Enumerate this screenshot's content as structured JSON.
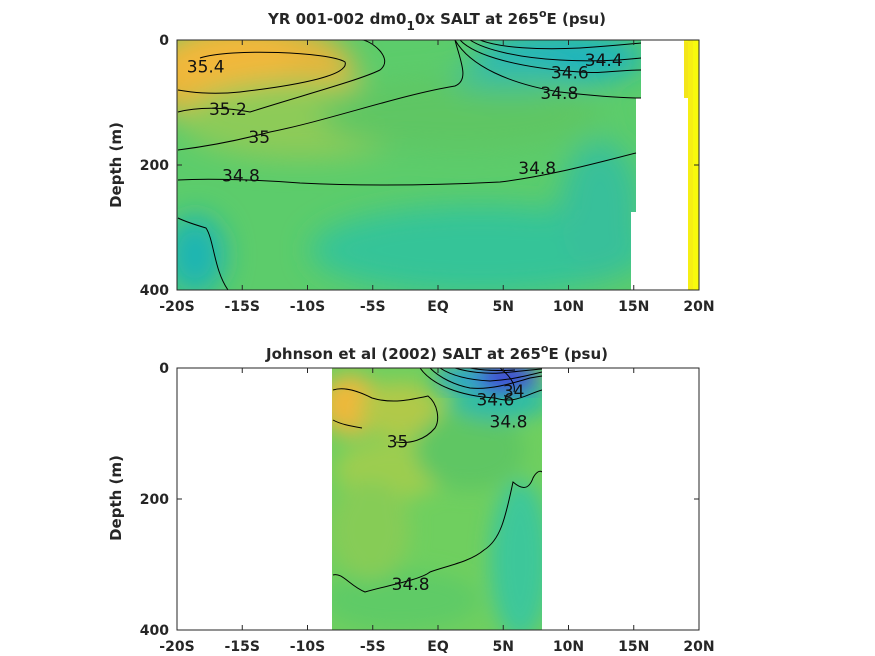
{
  "chart_data": [
    {
      "type": "heatmap",
      "title_parts": [
        "YR 001-002 dm0",
        "1",
        "0x SALT at 265",
        "o",
        "E (psu)"
      ],
      "ylabel": "Depth (m)",
      "x_ticks": [
        "-20S",
        "-15S",
        "-10S",
        "-5S",
        "EQ",
        "5N",
        "10N",
        "15N",
        "20N"
      ],
      "y_ticks": [
        "0",
        "200",
        "400"
      ],
      "xlim": [
        -20,
        20
      ],
      "ylim": [
        0,
        400
      ],
      "y_reversed": true,
      "colorscale": "parula",
      "color_range_psu": [
        33.8,
        35.6
      ],
      "contour_labels": [
        {
          "text": "35.4",
          "lat": -17.8,
          "depth": 42
        },
        {
          "text": "35.2",
          "lat": -16.1,
          "depth": 110
        },
        {
          "text": "35",
          "lat": -13.7,
          "depth": 155
        },
        {
          "text": "34.8",
          "lat": -15.1,
          "depth": 217
        },
        {
          "text": "34.8",
          "lat": 7.6,
          "depth": 205
        },
        {
          "text": "34.4",
          "lat": 12.7,
          "depth": 32
        },
        {
          "text": "34.6",
          "lat": 10.1,
          "depth": 52
        },
        {
          "text": "34.8",
          "lat": 9.3,
          "depth": 85
        }
      ]
    },
    {
      "type": "heatmap",
      "title_parts": [
        "Johnson et al (2002) SALT at 265",
        "o",
        "E (psu)"
      ],
      "ylabel": "Depth (m)",
      "x_ticks": [
        "-20S",
        "-15S",
        "-10S",
        "-5S",
        "EQ",
        "5N",
        "10N",
        "15N",
        "20N"
      ],
      "y_ticks": [
        "0",
        "200",
        "400"
      ],
      "xlim": [
        -20,
        20
      ],
      "ylim": [
        0,
        400
      ],
      "y_reversed": true,
      "colorscale": "parula",
      "color_range_psu": [
        33.8,
        35.6
      ],
      "data_extent_lat": [
        -8,
        8
      ],
      "contour_labels": [
        {
          "text": "35",
          "lat": -3.1,
          "depth": 112
        },
        {
          "text": "34",
          "lat": 5.8,
          "depth": 35
        },
        {
          "text": "34.6",
          "lat": 4.4,
          "depth": 48
        },
        {
          "text": "34.8",
          "lat": 5.4,
          "depth": 82
        },
        {
          "text": "34.8",
          "lat": -2.1,
          "depth": 330
        }
      ]
    }
  ]
}
